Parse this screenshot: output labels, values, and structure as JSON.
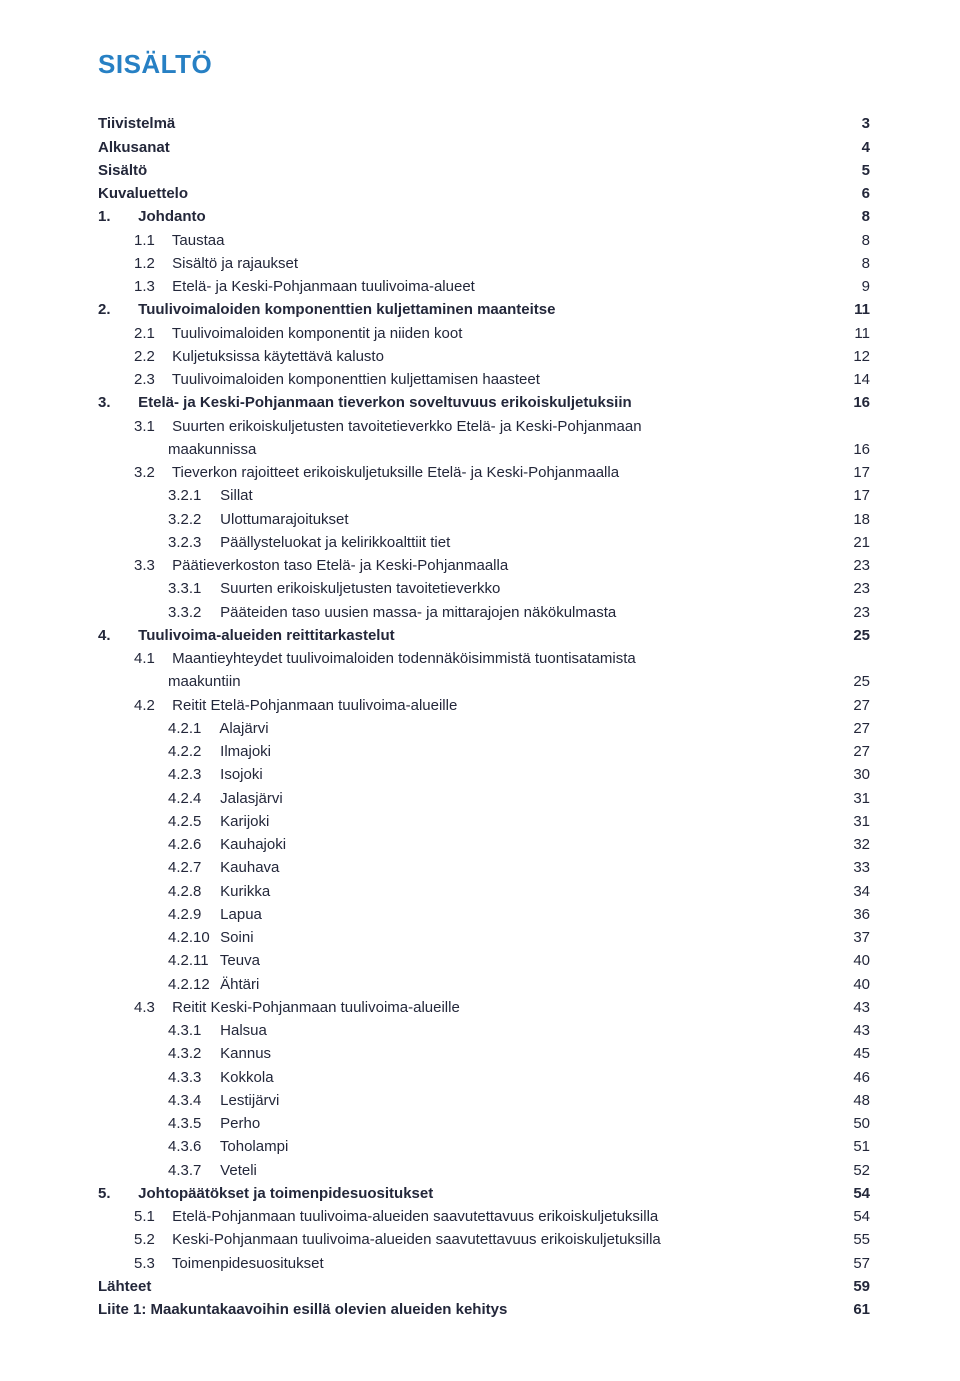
{
  "title": "SISÄLTÖ",
  "entries": [
    {
      "label": "Tiivistelmä",
      "page": "3",
      "level": 0,
      "bold": true
    },
    {
      "label": "Alkusanat",
      "page": "4",
      "level": 0,
      "bold": true
    },
    {
      "label": "Sisältö",
      "page": "5",
      "level": 0,
      "bold": true
    },
    {
      "label": "Kuvaluettelo",
      "page": "6",
      "level": 0,
      "bold": true
    },
    {
      "num": "1.",
      "label": "Johdanto",
      "page": "8",
      "level": 1,
      "bold": true
    },
    {
      "num": "1.1",
      "label": "Taustaa",
      "page": "8",
      "level": 2
    },
    {
      "num": "1.2",
      "label": "Sisältö ja rajaukset",
      "page": "8",
      "level": 2
    },
    {
      "num": "1.3",
      "label": "Etelä- ja Keski-Pohjanmaan tuulivoima-alueet",
      "page": "9",
      "level": 2
    },
    {
      "num": "2.",
      "label": "Tuulivoimaloiden komponenttien kuljettaminen maanteitse",
      "page": "11",
      "level": 1,
      "bold": true
    },
    {
      "num": "2.1",
      "label": "Tuulivoimaloiden komponentit ja niiden koot",
      "page": "11",
      "level": 2
    },
    {
      "num": "2.2",
      "label": "Kuljetuksissa käytettävä kalusto",
      "page": "12",
      "level": 2
    },
    {
      "num": "2.3",
      "label": "Tuulivoimaloiden komponenttien kuljettamisen haasteet",
      "page": "14",
      "level": 2
    },
    {
      "num": "3.",
      "label": "Etelä- ja Keski-Pohjanmaan tieverkon soveltuvuus erikoiskuljetuksiin",
      "page": "16",
      "level": 1,
      "bold": true
    },
    {
      "num": "3.1",
      "label": "Suurten erikoiskuljetusten tavoitetieverkko Etelä- ja Keski-Pohjanmaan",
      "page": "",
      "level": 2
    },
    {
      "label": "maakunnissa",
      "page": "16",
      "level": "2cont"
    },
    {
      "num": "3.2",
      "label": "Tieverkon rajoitteet erikoiskuljetuksille Etelä- ja Keski-Pohjanmaalla",
      "page": "17",
      "level": 2
    },
    {
      "num": "3.2.1",
      "label": "Sillat",
      "page": "17",
      "level": 3
    },
    {
      "num": "3.2.2",
      "label": "Ulottumarajoitukset",
      "page": "18",
      "level": 3
    },
    {
      "num": "3.2.3",
      "label": "Päällysteluokat ja kelirikkoalttiit tiet",
      "page": "21",
      "level": 3
    },
    {
      "num": "3.3",
      "label": "Päätieverkoston taso Etelä- ja Keski-Pohjanmaalla",
      "page": "23",
      "level": 2
    },
    {
      "num": "3.3.1",
      "label": "Suurten erikoiskuljetusten tavoitetieverkko",
      "page": "23",
      "level": 3
    },
    {
      "num": "3.3.2",
      "label": "Pääteiden taso uusien massa- ja mittarajojen näkökulmasta",
      "page": "23",
      "level": 3
    },
    {
      "num": "4.",
      "label": "Tuulivoima-alueiden reittitarkastelut",
      "page": "25",
      "level": 1,
      "bold": true
    },
    {
      "num": "4.1",
      "label": "Maantieyhteydet tuulivoimaloiden todennäköisimmistä tuontisatamista",
      "page": "",
      "level": 2
    },
    {
      "label": "maakuntiin",
      "page": "25",
      "level": "2cont"
    },
    {
      "num": "4.2",
      "label": "Reitit Etelä-Pohjanmaan tuulivoima-alueille",
      "page": "27",
      "level": 2
    },
    {
      "num": "4.2.1",
      "label": "Alajärvi",
      "page": "27",
      "level": 3
    },
    {
      "num": "4.2.2",
      "label": "Ilmajoki",
      "page": "27",
      "level": 3
    },
    {
      "num": "4.2.3",
      "label": "Isojoki",
      "page": "30",
      "level": 3
    },
    {
      "num": "4.2.4",
      "label": "Jalasjärvi",
      "page": "31",
      "level": 3
    },
    {
      "num": "4.2.5",
      "label": "Karijoki",
      "page": "31",
      "level": 3
    },
    {
      "num": "4.2.6",
      "label": "Kauhajoki",
      "page": "32",
      "level": 3
    },
    {
      "num": "4.2.7",
      "label": "Kauhava",
      "page": "33",
      "level": 3
    },
    {
      "num": "4.2.8",
      "label": "Kurikka",
      "page": "34",
      "level": 3
    },
    {
      "num": "4.2.9",
      "label": "Lapua",
      "page": "36",
      "level": 3
    },
    {
      "num": "4.2.10",
      "label": "Soini",
      "page": "37",
      "level": 3
    },
    {
      "num": "4.2.11",
      "label": "Teuva",
      "page": "40",
      "level": 3
    },
    {
      "num": "4.2.12",
      "label": "Ähtäri",
      "page": "40",
      "level": 3
    },
    {
      "num": "4.3",
      "label": "Reitit Keski-Pohjanmaan tuulivoima-alueille",
      "page": "43",
      "level": 2
    },
    {
      "num": "4.3.1",
      "label": "Halsua",
      "page": "43",
      "level": 3
    },
    {
      "num": "4.3.2",
      "label": "Kannus",
      "page": "45",
      "level": 3
    },
    {
      "num": "4.3.3",
      "label": "Kokkola",
      "page": "46",
      "level": 3
    },
    {
      "num": "4.3.4",
      "label": "Lestijärvi",
      "page": "48",
      "level": 3
    },
    {
      "num": "4.3.5",
      "label": "Perho",
      "page": "50",
      "level": 3
    },
    {
      "num": "4.3.6",
      "label": "Toholampi",
      "page": "51",
      "level": 3
    },
    {
      "num": "4.3.7",
      "label": "Veteli",
      "page": "52",
      "level": 3
    },
    {
      "num": "5.",
      "label": "Johtopäätökset ja toimenpidesuositukset",
      "page": "54",
      "level": 1,
      "bold": true
    },
    {
      "num": "5.1",
      "label": "Etelä-Pohjanmaan tuulivoima-alueiden saavutettavuus erikoiskuljetuksilla",
      "page": "54",
      "level": 2
    },
    {
      "num": "5.2",
      "label": "Keski-Pohjanmaan tuulivoima-alueiden saavutettavuus erikoiskuljetuksilla",
      "page": "55",
      "level": 2
    },
    {
      "num": "5.3",
      "label": "Toimenpidesuositukset",
      "page": "57",
      "level": 2
    },
    {
      "label": "Lähteet",
      "page": "59",
      "level": 0,
      "bold": true
    },
    {
      "label": "Liite 1: Maakuntakaavoihin esillä olevien alueiden kehitys",
      "page": "61",
      "level": 0,
      "bold": true
    }
  ]
}
